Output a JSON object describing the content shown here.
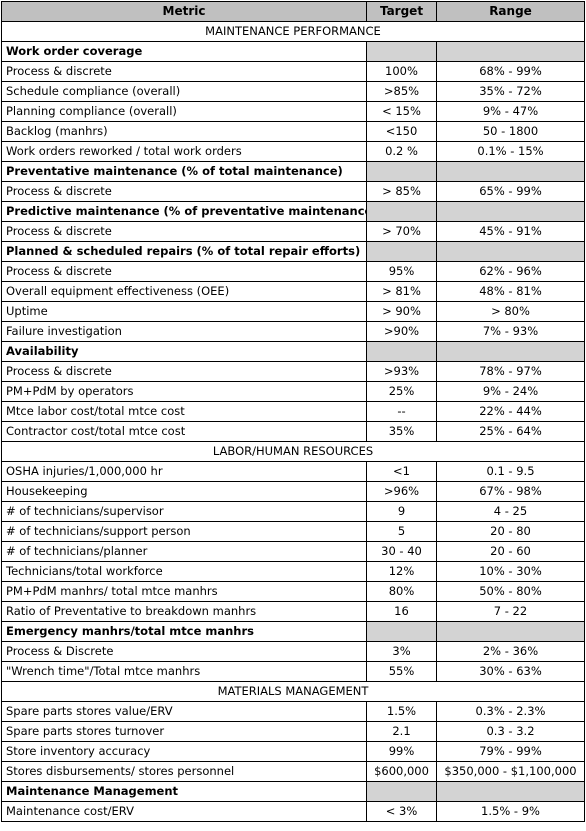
{
  "headers": [
    "Metric",
    "Target",
    "Range"
  ],
  "rows": [
    {
      "kind": "section",
      "label": "MAINTENANCE PERFORMANCE"
    },
    {
      "kind": "subhead",
      "label": "Work order coverage"
    },
    {
      "kind": "data",
      "label": "Process & discrete",
      "target": "100%",
      "range": "68% - 99%"
    },
    {
      "kind": "data",
      "label": "Schedule compliance (overall)",
      "target": ">85%",
      "range": "35% - 72%"
    },
    {
      "kind": "data",
      "label": "Planning compliance (overall)",
      "target": "< 15%",
      "range": "9% - 47%"
    },
    {
      "kind": "data",
      "label": "Backlog (manhrs)",
      "target": "<150",
      "range": "50 - 1800"
    },
    {
      "kind": "data",
      "label": "Work orders reworked / total work orders",
      "target": "0.2 %",
      "range": "0.1% - 15%"
    },
    {
      "kind": "subhead",
      "label": "Preventative maintenance (% of total maintenance)"
    },
    {
      "kind": "data",
      "label": "Process & discrete",
      "target": "> 85%",
      "range": "65% - 99%"
    },
    {
      "kind": "subhead",
      "label": "Predictive maintenance (% of preventative maintenance)"
    },
    {
      "kind": "data",
      "label": "Process & discrete",
      "target": "> 70%",
      "range": "45% - 91%"
    },
    {
      "kind": "subhead",
      "label": "Planned & scheduled repairs (% of total repair efforts)"
    },
    {
      "kind": "data",
      "label": "Process & discrete",
      "target": "95%",
      "range": "62% - 96%"
    },
    {
      "kind": "data",
      "label": "Overall equipment effectiveness (OEE)",
      "target": "> 81%",
      "range": "48% - 81%"
    },
    {
      "kind": "data",
      "label": "Uptime",
      "target": "> 90%",
      "range": "> 80%"
    },
    {
      "kind": "data",
      "label": "Failure investigation",
      "target": ">90%",
      "range": "7% - 93%"
    },
    {
      "kind": "subhead",
      "label": "Availability"
    },
    {
      "kind": "data",
      "label": "Process & discrete",
      "target": ">93%",
      "range": "78% - 97%"
    },
    {
      "kind": "data",
      "label": "PM+PdM by operators",
      "target": "25%",
      "range": "9% - 24%"
    },
    {
      "kind": "data",
      "label": "Mtce labor cost/total mtce cost",
      "target": "--",
      "range": "22% - 44%"
    },
    {
      "kind": "data",
      "label": "Contractor cost/total mtce cost",
      "target": "35%",
      "range": "25% - 64%"
    },
    {
      "kind": "section",
      "label": "LABOR/HUMAN RESOURCES"
    },
    {
      "kind": "data",
      "label": "OSHA injuries/1,000,000 hr",
      "target": "<1",
      "range": "0.1 - 9.5"
    },
    {
      "kind": "data",
      "label": "Housekeeping",
      "target": ">96%",
      "range": "67% - 98%"
    },
    {
      "kind": "data",
      "label": "# of technicians/supervisor",
      "target": "9",
      "range": "4 - 25"
    },
    {
      "kind": "data",
      "label": "# of technicians/support person",
      "target": "5",
      "range": "20 - 80"
    },
    {
      "kind": "data",
      "label": "# of technicians/planner",
      "target": "30 - 40",
      "range": "20 - 60"
    },
    {
      "kind": "data",
      "label": "Technicians/total workforce",
      "target": "12%",
      "range": "10% - 30%"
    },
    {
      "kind": "data",
      "label": "PM+PdM manhrs/ total mtce manhrs",
      "target": "80%",
      "range": "50% - 80%"
    },
    {
      "kind": "data",
      "label": "Ratio of Preventative to breakdown manhrs",
      "target": "16",
      "range": "7 - 22"
    },
    {
      "kind": "subhead",
      "label": "Emergency manhrs/total mtce manhrs"
    },
    {
      "kind": "data",
      "label": "Process & Discrete",
      "target": "3%",
      "range": "2% - 36%"
    },
    {
      "kind": "data",
      "label": "\"Wrench time\"/Total mtce manhrs",
      "target": "55%",
      "range": "30% - 63%"
    },
    {
      "kind": "section",
      "label": "MATERIALS MANAGEMENT"
    },
    {
      "kind": "data",
      "label": "Spare parts stores value/ERV",
      "target": "1.5%",
      "range": "0.3% - 2.3%"
    },
    {
      "kind": "data",
      "label": "Spare parts stores turnover",
      "target": "2.1",
      "range": "0.3 - 3.2"
    },
    {
      "kind": "data",
      "label": "Store inventory accuracy",
      "target": "99%",
      "range": "79% - 99%"
    },
    {
      "kind": "data",
      "label": "Stores disbursements/ stores personnel",
      "target": "$600,000",
      "range": "$350,000 - $1,100,000"
    },
    {
      "kind": "subhead",
      "label": "Maintenance Management"
    },
    {
      "kind": "data",
      "label": "Maintenance cost/ERV",
      "target": "< 3%",
      "range": "1.5% - 9%"
    }
  ]
}
